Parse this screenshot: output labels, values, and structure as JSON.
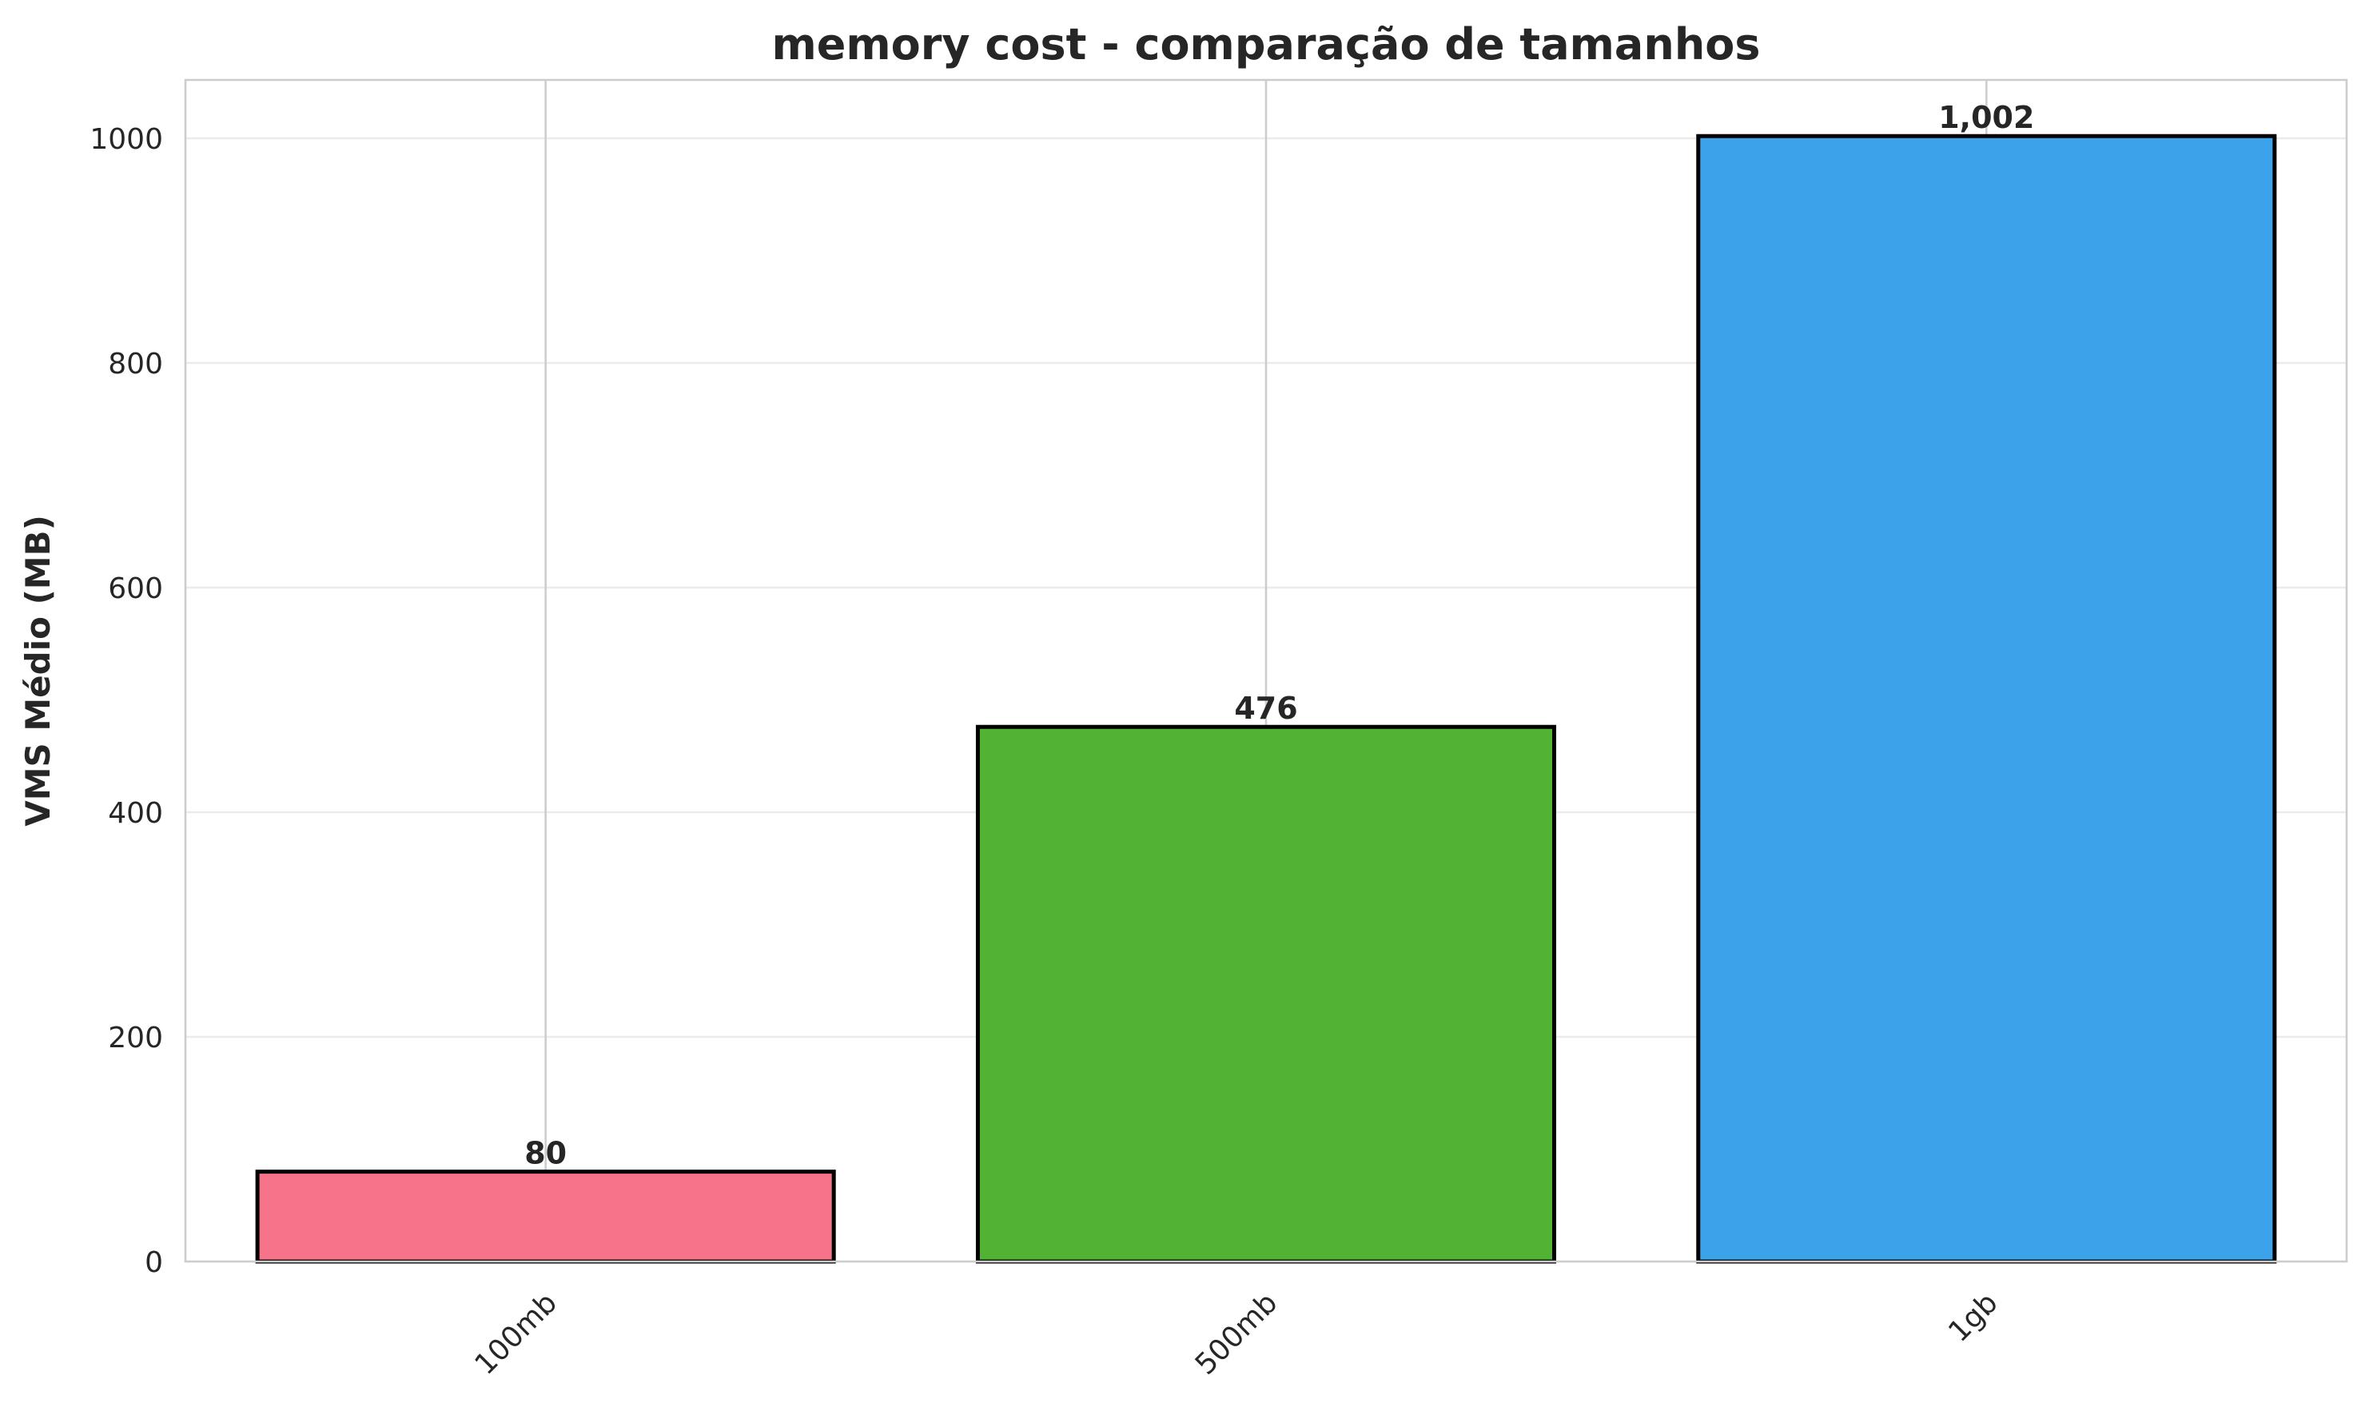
{
  "chart_data": {
    "type": "bar",
    "title": "memory cost - comparação de tamanhos",
    "xlabel": "",
    "ylabel": "VMS Médio (MB)",
    "categories": [
      "100mb",
      "500mb",
      "1gb"
    ],
    "values": [
      80,
      476,
      1002
    ],
    "value_labels": [
      "80",
      "476",
      "1,002"
    ],
    "colors": [
      "#f7738a",
      "#51b233",
      "#3ca2ea"
    ],
    "ylim": [
      0,
      1052
    ],
    "yticks": [
      0,
      200,
      400,
      600,
      800,
      1000
    ],
    "ytick_labels": [
      "0",
      "200",
      "400",
      "600",
      "800",
      "1000"
    ],
    "grid": true,
    "legend": "none"
  }
}
